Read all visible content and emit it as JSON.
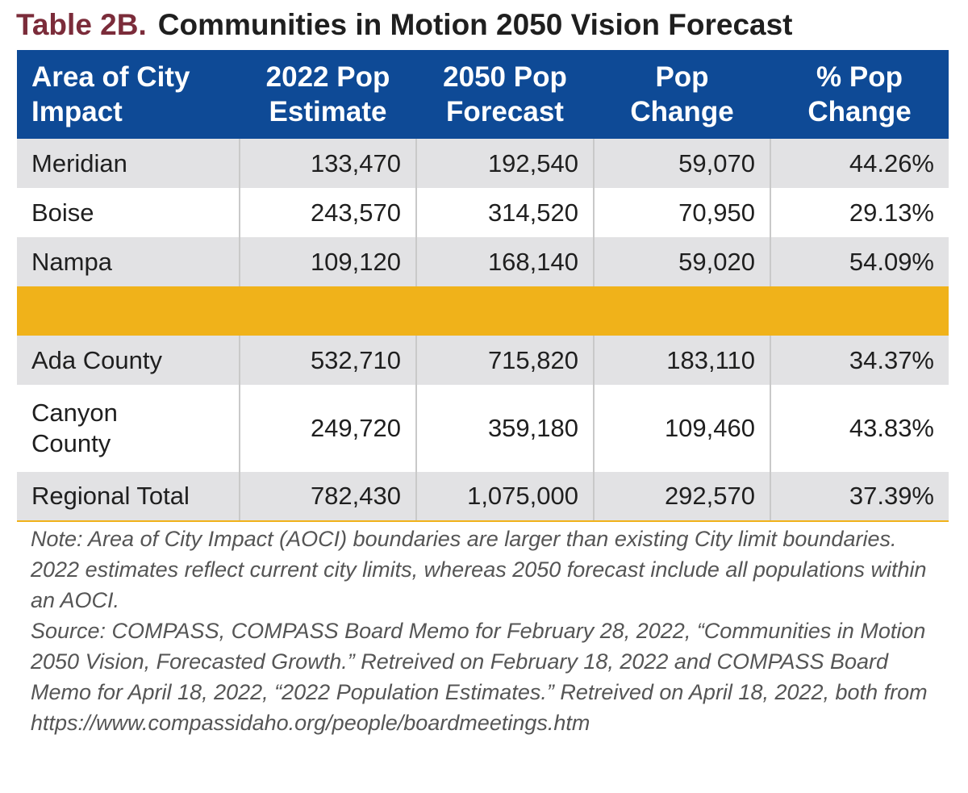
{
  "title": {
    "label": "Table 2B.",
    "text": "Communities in Motion 2050 Vision Forecast"
  },
  "table": {
    "headers": [
      [
        "Area of City",
        "Impact"
      ],
      [
        "2022 Pop",
        "Estimate"
      ],
      [
        "2050 Pop",
        "Forecast"
      ],
      [
        "Pop",
        "Change"
      ],
      [
        "% Pop",
        "Change"
      ]
    ],
    "rows": [
      [
        "Meridian",
        "133,470",
        "192,540",
        "59,070",
        "44.26%"
      ],
      [
        "Boise",
        "243,570",
        "314,520",
        "70,950",
        "29.13%"
      ],
      [
        "Nampa",
        "109,120",
        "168,140",
        "59,020",
        "54.09%"
      ],
      [
        "Ada County",
        "532,710",
        "715,820",
        "183,110",
        "34.37%"
      ],
      [
        "Canyon County",
        "249,720",
        "359,180",
        "109,460",
        "43.83%"
      ],
      [
        "Regional Total",
        "782,430",
        "1,075,000",
        "292,570",
        "37.39%"
      ]
    ]
  },
  "notes": {
    "note": "Note: Area of City Impact (AOCI) boundaries are larger than existing City limit boundaries. 2022 estimates reflect current city limits, whereas 2050 forecast include all populations within an AOCI.",
    "source": "Source: COMPASS, COMPASS Board Memo for February 28, 2022, “Communities in Motion 2050 Vision, Forecasted Growth.” Retreived on February 18, 2022 and COMPASS Board Memo for April 18, 2022, “2022 Population Estimates.” Retreived on April 18, 2022, both from https://www.compassidaho.org/people/boardmeetings.htm"
  },
  "colors": {
    "header_bg": "#0e4a96",
    "title_label": "#7b2c3a",
    "spacer": "#f0b21a",
    "row_shade": "#e2e2e4"
  }
}
